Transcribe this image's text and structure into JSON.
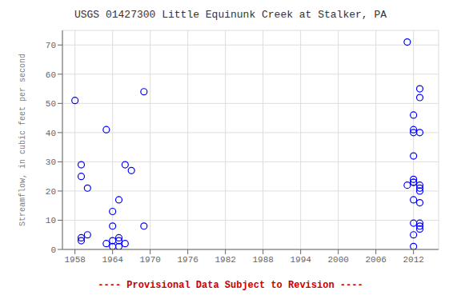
{
  "chart_data": {
    "type": "scatter",
    "title": "USGS 01427300 Little Equinunk Creek at Stalker, PA",
    "ylabel": "Streamflow, in cubic feet per second",
    "annotations": [
      {
        "text": "---- Provisional Data Subject to Revision ----",
        "color": "#cc0000"
      }
    ],
    "xlim": [
      1956,
      2016
    ],
    "ylim": [
      0,
      75
    ],
    "xticks": [
      1958,
      1964,
      1970,
      1976,
      1982,
      1988,
      1994,
      2000,
      2006,
      2012
    ],
    "yticks": [
      0,
      10,
      20,
      30,
      40,
      50,
      60,
      70
    ],
    "grid": true,
    "color": "blue",
    "marker": "circle",
    "x": [
      1958,
      1959,
      1959,
      1959,
      1959,
      1960,
      1960,
      1963,
      1963,
      1964,
      1964,
      1964,
      1964,
      1965,
      1965,
      1965,
      1965,
      1966,
      1966,
      1967,
      1969,
      1969,
      2011,
      2011,
      2012,
      2012,
      2012,
      2012,
      2012,
      2012,
      2012,
      2012,
      2012,
      2012,
      2012,
      2013,
      2013,
      2013,
      2013,
      2013,
      2013,
      2013,
      2013,
      2013,
      2013
    ],
    "values": [
      51,
      29,
      25,
      3,
      4,
      21,
      5,
      41,
      2,
      13,
      8,
      3,
      1,
      17,
      4,
      3,
      1,
      29,
      2,
      27,
      54,
      8,
      71,
      22,
      46,
      40,
      41,
      32,
      23,
      24,
      23,
      17,
      9,
      5,
      1,
      55,
      52,
      40,
      22,
      21,
      20,
      16,
      9,
      8,
      7
    ]
  }
}
